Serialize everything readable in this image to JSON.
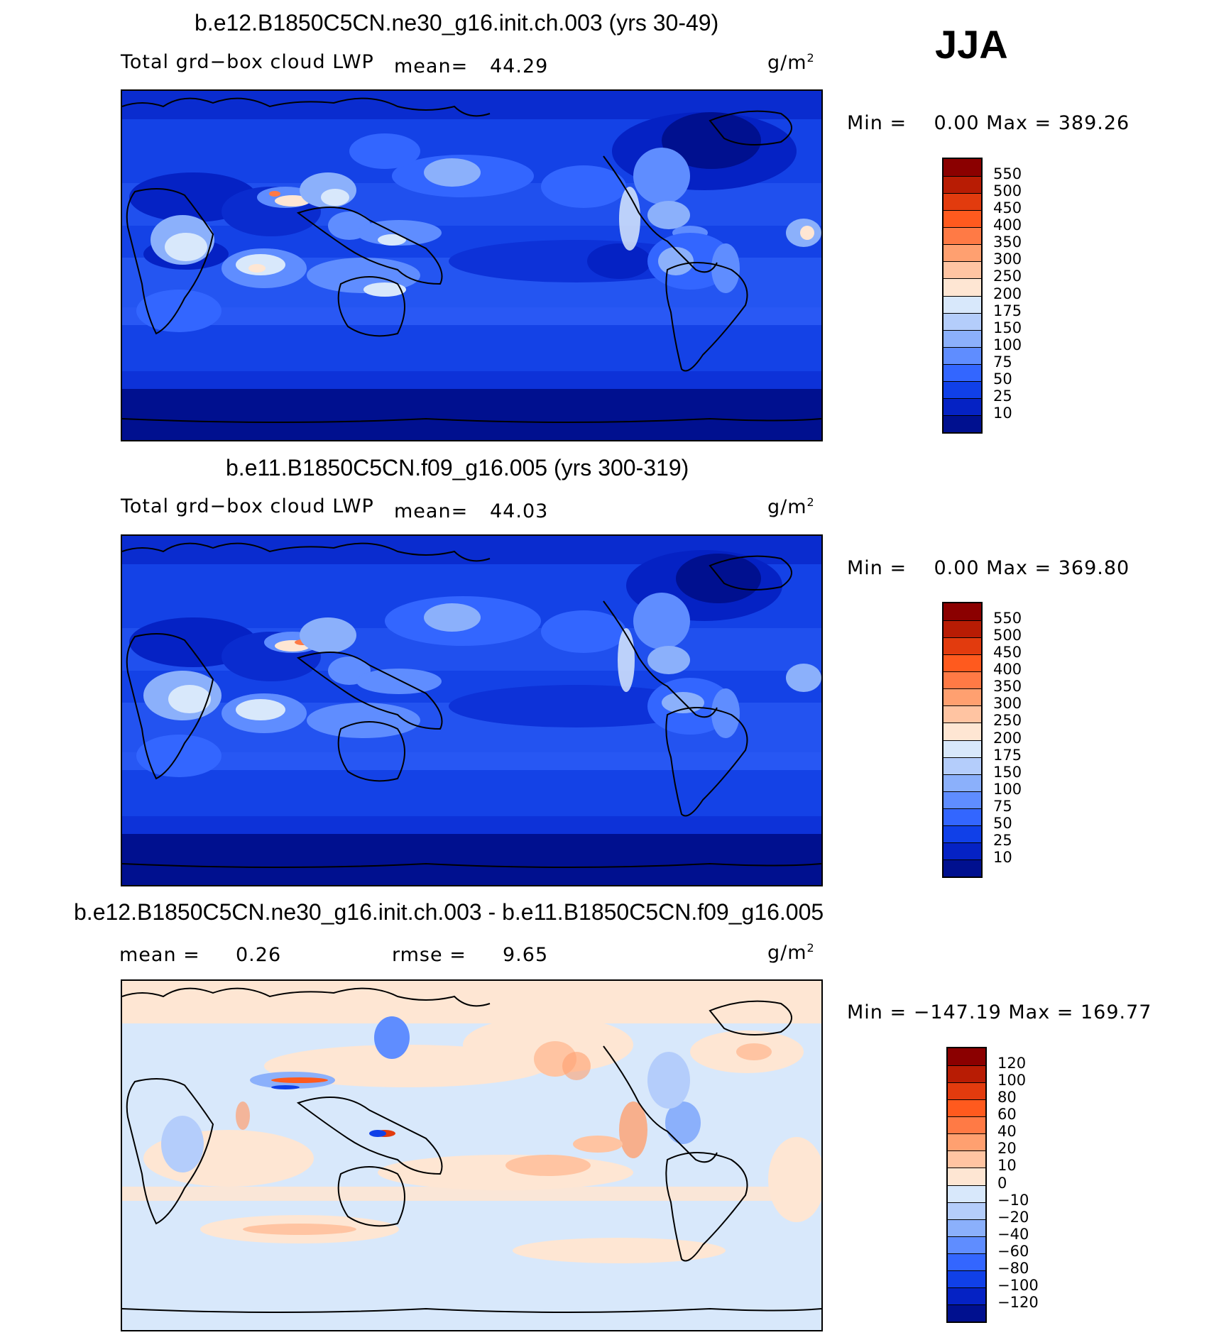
{
  "season": "JJA",
  "panels": [
    {
      "title": "b.e12.B1850C5CN.ne30_g16.init.ch.003 (yrs 30-49)",
      "variable": "Total grd−box cloud LWP",
      "mean_label": "mean=",
      "mean_value": "44.29",
      "units": "g/m",
      "units_sup": "2",
      "minmax": "Min =    0.00 Max = 389.26",
      "colorbar": {
        "labels": [
          "550",
          "500",
          "450",
          "400",
          "350",
          "300",
          "250",
          "200",
          "175",
          "150",
          "100",
          "75",
          "50",
          "25",
          "10"
        ],
        "colors": [
          "#8b0000",
          "#b81c04",
          "#e23b0e",
          "#ff5a1e",
          "#ff7a45",
          "#ffa070",
          "#ffc4a2",
          "#fee6d3",
          "#d8e8fb",
          "#b4cdfb",
          "#8bb0fb",
          "#5f8dff",
          "#3366ff",
          "#1040e8",
          "#0522c4",
          "#00108f"
        ]
      }
    },
    {
      "title": "b.e11.B1850C5CN.f09_g16.005 (yrs 300-319)",
      "variable": "Total grd−box cloud LWP",
      "mean_label": "mean=",
      "mean_value": "44.03",
      "units": "g/m",
      "units_sup": "2",
      "minmax": "Min =    0.00 Max = 369.80",
      "colorbar": {
        "labels": [
          "550",
          "500",
          "450",
          "400",
          "350",
          "300",
          "250",
          "200",
          "175",
          "150",
          "100",
          "75",
          "50",
          "25",
          "10"
        ],
        "colors": [
          "#8b0000",
          "#b81c04",
          "#e23b0e",
          "#ff5a1e",
          "#ff7a45",
          "#ffa070",
          "#ffc4a2",
          "#fee6d3",
          "#d8e8fb",
          "#b4cdfb",
          "#8bb0fb",
          "#5f8dff",
          "#3366ff",
          "#1040e8",
          "#0522c4",
          "#00108f"
        ]
      }
    },
    {
      "title": "b.e12.B1850C5CN.ne30_g16.init.ch.003 - b.e11.B1850C5CN.f09_g16.005",
      "mean_label": "mean =",
      "mean_value": "0.26",
      "rmse_label": "rmse =",
      "rmse_value": "9.65",
      "units": "g/m",
      "units_sup": "2",
      "minmax": "Min = −147.19 Max = 169.77",
      "colorbar": {
        "labels": [
          "120",
          "100",
          "80",
          "60",
          "40",
          "20",
          "10",
          "0",
          "−10",
          "−20",
          "−40",
          "−60",
          "−80",
          "−100",
          "−120"
        ],
        "colors": [
          "#8b0000",
          "#b81c04",
          "#e23b0e",
          "#ff5a1e",
          "#ff7a45",
          "#ffa070",
          "#ffc4a2",
          "#fee6d3",
          "#d8e8fb",
          "#b4cdfb",
          "#8bb0fb",
          "#5f8dff",
          "#3366ff",
          "#1040e8",
          "#0522c4",
          "#00108f"
        ]
      }
    }
  ]
}
